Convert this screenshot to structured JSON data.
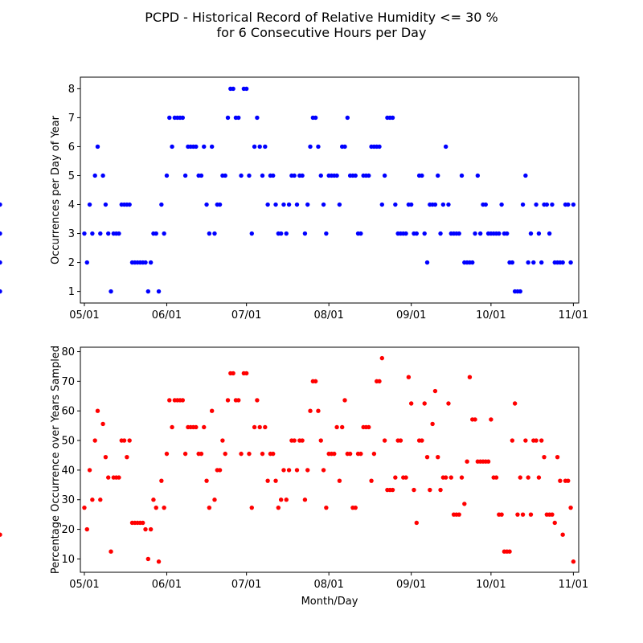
{
  "figure": {
    "title_line1": "PCPD - Historical Record of Relative Humidity <= 30 %",
    "title_line2": "for 6 Consecutive Hours per Day"
  },
  "chart_data": [
    {
      "type": "scatter",
      "ylabel": "Occurrences per Day of Year",
      "xlabel": "",
      "x_ticks": [
        "05/01",
        "06/01",
        "07/01",
        "08/01",
        "09/01",
        "10/01",
        "11/01"
      ],
      "y_ticks": [
        1,
        2,
        3,
        4,
        5,
        6,
        7,
        8
      ],
      "xlim": [
        -1.5,
        186
      ],
      "ylim": [
        0.6,
        8.4
      ],
      "color": "#0000ff",
      "x_days_from_may1": [
        0,
        1,
        2,
        3,
        4,
        5,
        6,
        7,
        8,
        9,
        10,
        11,
        12,
        13,
        14,
        15,
        16,
        17,
        18,
        19,
        20,
        21,
        22,
        23,
        24,
        25,
        26,
        27,
        28,
        29,
        30,
        31,
        32,
        33,
        34,
        35,
        36,
        37,
        38,
        39,
        40,
        41,
        42,
        43,
        44,
        45,
        46,
        47,
        48,
        49,
        50,
        51,
        52,
        53,
        54,
        55,
        56,
        57,
        58,
        59,
        60,
        61,
        62,
        63,
        64,
        65,
        66,
        67,
        68,
        69,
        70,
        71,
        72,
        73,
        74,
        75,
        76,
        77,
        78,
        79,
        80,
        81,
        82,
        83,
        84,
        85,
        86,
        87,
        88,
        89,
        90,
        91,
        92,
        93,
        94,
        95,
        96,
        97,
        98,
        99,
        100,
        101,
        102,
        103,
        104,
        105,
        106,
        107,
        108,
        109,
        110,
        111,
        112,
        113,
        114,
        115,
        116,
        117,
        118,
        119,
        120,
        121,
        122,
        123,
        124,
        125,
        126,
        127,
        128,
        129,
        130,
        131,
        132,
        133,
        134,
        135,
        136,
        137,
        138,
        139,
        140,
        141,
        142,
        143,
        144,
        145,
        146,
        147,
        148,
        149,
        150,
        151,
        152,
        153,
        154,
        155,
        156,
        157,
        158,
        159,
        160,
        161,
        162,
        163,
        164,
        165,
        166,
        167,
        168,
        169,
        170,
        171,
        172,
        173,
        174,
        175,
        176,
        177,
        178,
        179,
        180,
        181,
        182,
        183,
        184
      ],
      "values": [
        3,
        2,
        4,
        3,
        5,
        6,
        3,
        5,
        4,
        3,
        1,
        3,
        3,
        3,
        4,
        4,
        4,
        4,
        2,
        2,
        2,
        2,
        2,
        2,
        1,
        2,
        3,
        3,
        1,
        4,
        3,
        5,
        7,
        6,
        7,
        7,
        7,
        7,
        5,
        6,
        6,
        6,
        6,
        5,
        5,
        6,
        4,
        3,
        6,
        3,
        4,
        4,
        5,
        5,
        7,
        8,
        8,
        7,
        7,
        5,
        8,
        8,
        5,
        3,
        6,
        7,
        6,
        5,
        6,
        4,
        5,
        5,
        4,
        3,
        3,
        4,
        3,
        4,
        5,
        5,
        4,
        5,
        5,
        3,
        4,
        6,
        7,
        7,
        6,
        5,
        4,
        3,
        5,
        5,
        5,
        5,
        4,
        6,
        6,
        7,
        5,
        5,
        5,
        3,
        3,
        5,
        5,
        5,
        6,
        6,
        6,
        6,
        4,
        5,
        7,
        7,
        7,
        4,
        3,
        3,
        3,
        3,
        4,
        4,
        3,
        3,
        5,
        5,
        3,
        2,
        4,
        4,
        4,
        5,
        3,
        4,
        6,
        4,
        3,
        3,
        3,
        3,
        5,
        2,
        2,
        2,
        2,
        3,
        5,
        3,
        4,
        4,
        3,
        3,
        3,
        3,
        3,
        4,
        3,
        3,
        2,
        2,
        1,
        1,
        1,
        4,
        5,
        2,
        3,
        2,
        4,
        3,
        2,
        4,
        4,
        3,
        4,
        2,
        2,
        2,
        2,
        4,
        4,
        2,
        4,
        4,
        3,
        1,
        2
      ]
    },
    {
      "type": "scatter",
      "ylabel": "Percentage Occurrence over Years Sampled",
      "xlabel": "Month/Day",
      "x_ticks": [
        "05/01",
        "06/01",
        "07/01",
        "08/01",
        "09/01",
        "10/01",
        "11/01"
      ],
      "y_ticks": [
        10,
        20,
        30,
        40,
        50,
        60,
        70,
        80
      ],
      "xlim": [
        -1.5,
        186
      ],
      "ylim": [
        5.5,
        81.5
      ],
      "color": "#ff0000",
      "x_days_from_may1": [
        0,
        1,
        2,
        3,
        4,
        5,
        6,
        7,
        8,
        9,
        10,
        11,
        12,
        13,
        14,
        15,
        16,
        17,
        18,
        19,
        20,
        21,
        22,
        23,
        24,
        25,
        26,
        27,
        28,
        29,
        30,
        31,
        32,
        33,
        34,
        35,
        36,
        37,
        38,
        39,
        40,
        41,
        42,
        43,
        44,
        45,
        46,
        47,
        48,
        49,
        50,
        51,
        52,
        53,
        54,
        55,
        56,
        57,
        58,
        59,
        60,
        61,
        62,
        63,
        64,
        65,
        66,
        67,
        68,
        69,
        70,
        71,
        72,
        73,
        74,
        75,
        76,
        77,
        78,
        79,
        80,
        81,
        82,
        83,
        84,
        85,
        86,
        87,
        88,
        89,
        90,
        91,
        92,
        93,
        94,
        95,
        96,
        97,
        98,
        99,
        100,
        101,
        102,
        103,
        104,
        105,
        106,
        107,
        108,
        109,
        110,
        111,
        112,
        113,
        114,
        115,
        116,
        117,
        118,
        119,
        120,
        121,
        122,
        123,
        124,
        125,
        126,
        127,
        128,
        129,
        130,
        131,
        132,
        133,
        134,
        135,
        136,
        137,
        138,
        139,
        140,
        141,
        142,
        143,
        144,
        145,
        146,
        147,
        148,
        149,
        150,
        151,
        152,
        153,
        154,
        155,
        156,
        157,
        158,
        159,
        160,
        161,
        162,
        163,
        164,
        165,
        166,
        167,
        168,
        169,
        170,
        171,
        172,
        173,
        174,
        175,
        176,
        177,
        178,
        179,
        180,
        181,
        182,
        183,
        184
      ],
      "values": [
        27.3,
        20,
        40,
        30,
        50,
        60,
        30,
        55.6,
        44.4,
        37.5,
        12.5,
        37.5,
        37.5,
        37.5,
        50,
        50,
        44.4,
        50,
        22.2,
        22.2,
        22.2,
        22.2,
        22.2,
        20,
        10,
        20,
        30,
        27.3,
        9.1,
        36.4,
        27.3,
        45.5,
        63.6,
        54.5,
        63.6,
        63.6,
        63.6,
        63.6,
        45.5,
        54.5,
        54.5,
        54.5,
        54.5,
        45.5,
        45.5,
        54.5,
        36.4,
        27.3,
        60,
        30,
        40,
        40,
        50,
        45.5,
        63.6,
        72.7,
        72.7,
        63.6,
        63.6,
        45.5,
        72.7,
        72.7,
        45.5,
        27.3,
        54.5,
        63.6,
        54.5,
        45.5,
        54.5,
        36.4,
        45.5,
        45.5,
        36.4,
        27.3,
        30,
        40,
        30,
        40,
        50,
        50,
        40,
        50,
        50,
        30,
        40,
        60,
        70,
        70,
        60,
        50,
        40,
        27.3,
        45.5,
        45.5,
        45.5,
        54.5,
        36.4,
        54.5,
        63.6,
        45.5,
        45.5,
        27.3,
        27.3,
        45.5,
        45.5,
        54.5,
        54.5,
        54.5,
        36.4,
        45.5,
        70,
        70,
        77.8,
        50,
        33.3,
        33.3,
        33.3,
        37.5,
        50,
        50,
        37.5,
        37.5,
        71.4,
        62.5,
        33.3,
        22.2,
        50,
        50,
        62.5,
        44.4,
        33.3,
        55.6,
        66.7,
        44.4,
        33.3,
        37.5,
        37.5,
        62.5,
        37.5,
        25,
        25,
        25,
        37.5,
        28.6,
        42.9,
        71.4,
        57.1,
        57.1,
        42.9,
        42.9,
        42.9,
        42.9,
        42.9,
        57.1,
        37.5,
        37.5,
        25,
        25,
        12.5,
        12.5,
        12.5,
        50,
        62.5,
        25,
        37.5,
        25,
        50,
        37.5,
        25,
        50,
        50,
        37.5,
        50,
        44.4,
        25,
        25,
        25,
        22.2,
        44.4,
        36.4,
        18.2,
        36.4,
        36.4,
        27.3,
        9.1,
        18.2
      ]
    }
  ]
}
